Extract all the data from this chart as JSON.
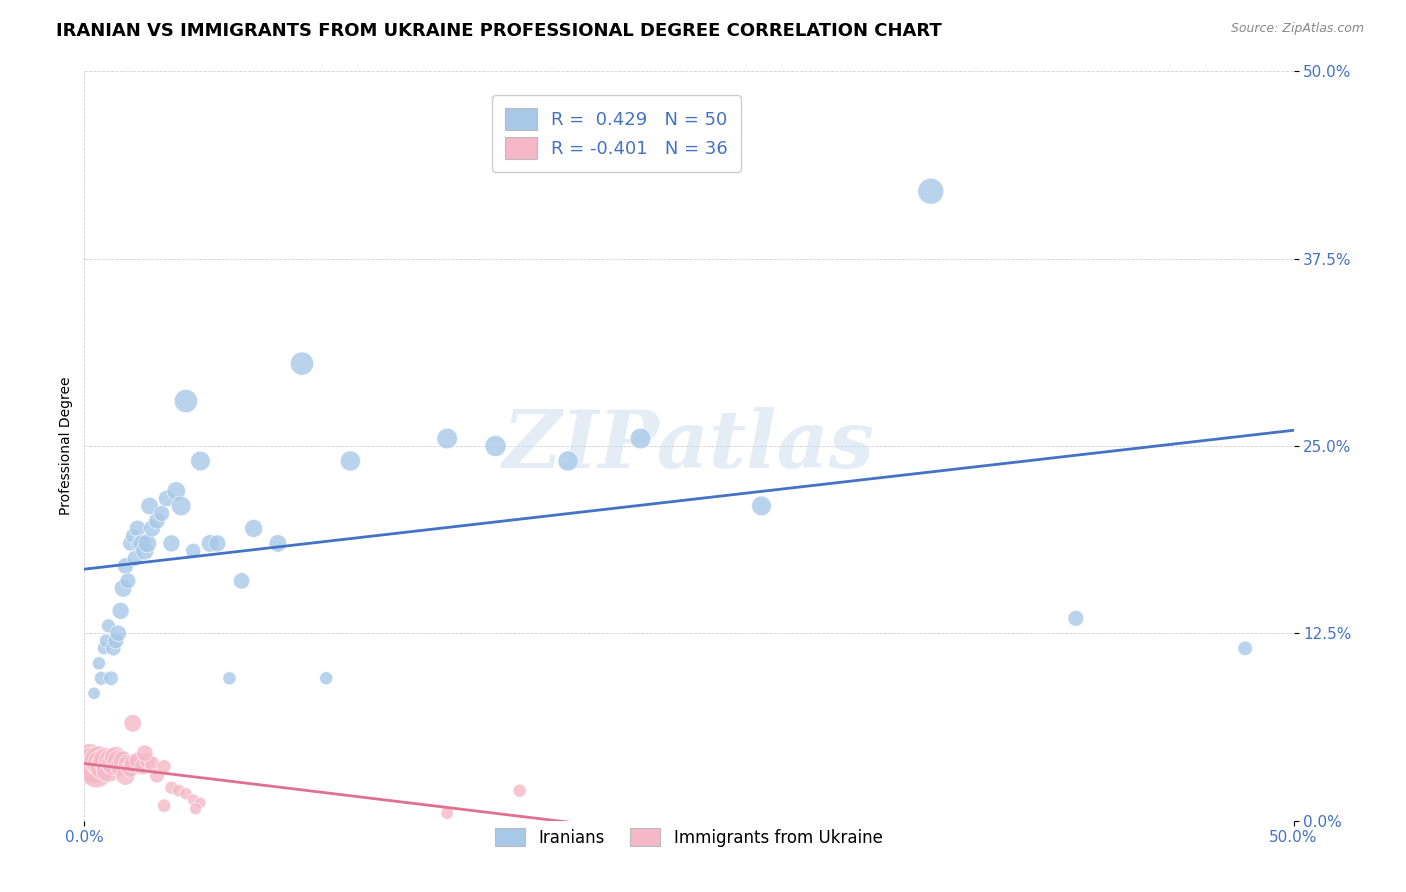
{
  "title": "IRANIAN VS IMMIGRANTS FROM UKRAINE PROFESSIONAL DEGREE CORRELATION CHART",
  "source": "Source: ZipAtlas.com",
  "ylabel": "Professional Degree",
  "xlabel": "",
  "xlim": [
    0.0,
    0.5
  ],
  "ylim": [
    0.0,
    0.5
  ],
  "ytick_labels": [
    "0.0%",
    "12.5%",
    "25.0%",
    "37.5%",
    "50.0%"
  ],
  "ytick_values": [
    0.0,
    0.125,
    0.25,
    0.375,
    0.5
  ],
  "xtick_values": [
    0.0,
    0.5
  ],
  "xtick_labels": [
    "0.0%",
    "50.0%"
  ],
  "background_color": "#ffffff",
  "watermark_text": "ZIPatlas",
  "iranians_color": "#a8c8e8",
  "ukraine_color": "#f4b8c8",
  "trend_iranian_color": "#4472c4",
  "trend_ukraine_color": "#e07090",
  "iranians_R": 0.429,
  "iranians_N": 50,
  "ukraine_R": -0.401,
  "ukraine_N": 36,
  "iranians_x": [
    0.004,
    0.006,
    0.007,
    0.008,
    0.009,
    0.01,
    0.011,
    0.012,
    0.013,
    0.014,
    0.015,
    0.016,
    0.017,
    0.018,
    0.019,
    0.02,
    0.021,
    0.022,
    0.023,
    0.024,
    0.025,
    0.026,
    0.027,
    0.028,
    0.03,
    0.032,
    0.034,
    0.036,
    0.038,
    0.04,
    0.042,
    0.045,
    0.048,
    0.052,
    0.055,
    0.06,
    0.065,
    0.07,
    0.08,
    0.09,
    0.1,
    0.11,
    0.15,
    0.17,
    0.2,
    0.23,
    0.28,
    0.35,
    0.41,
    0.48
  ],
  "iranians_y": [
    0.085,
    0.105,
    0.095,
    0.115,
    0.12,
    0.13,
    0.095,
    0.115,
    0.12,
    0.125,
    0.14,
    0.155,
    0.17,
    0.16,
    0.185,
    0.19,
    0.175,
    0.195,
    0.185,
    0.185,
    0.18,
    0.185,
    0.21,
    0.195,
    0.2,
    0.205,
    0.215,
    0.185,
    0.22,
    0.21,
    0.28,
    0.18,
    0.24,
    0.185,
    0.185,
    0.095,
    0.16,
    0.195,
    0.185,
    0.305,
    0.095,
    0.24,
    0.255,
    0.25,
    0.24,
    0.255,
    0.21,
    0.42,
    0.135,
    0.115
  ],
  "iranians_sizes": [
    80,
    90,
    100,
    85,
    95,
    100,
    110,
    120,
    130,
    140,
    150,
    160,
    140,
    130,
    120,
    110,
    130,
    140,
    150,
    160,
    170,
    180,
    160,
    150,
    140,
    130,
    140,
    150,
    180,
    200,
    280,
    120,
    200,
    160,
    150,
    90,
    140,
    170,
    160,
    280,
    90,
    210,
    220,
    230,
    210,
    220,
    200,
    350,
    130,
    110
  ],
  "ukraine_x": [
    0.002,
    0.003,
    0.004,
    0.005,
    0.006,
    0.007,
    0.008,
    0.009,
    0.01,
    0.011,
    0.012,
    0.013,
    0.014,
    0.015,
    0.016,
    0.017,
    0.018,
    0.019,
    0.02,
    0.022,
    0.024,
    0.026,
    0.028,
    0.03,
    0.033,
    0.036,
    0.039,
    0.042,
    0.045,
    0.048,
    0.02,
    0.025,
    0.033,
    0.18,
    0.046,
    0.15
  ],
  "ukraine_y": [
    0.04,
    0.038,
    0.035,
    0.032,
    0.04,
    0.038,
    0.036,
    0.04,
    0.034,
    0.04,
    0.038,
    0.042,
    0.04,
    0.036,
    0.04,
    0.03,
    0.038,
    0.035,
    0.038,
    0.04,
    0.036,
    0.04,
    0.038,
    0.03,
    0.036,
    0.022,
    0.02,
    0.018,
    0.014,
    0.012,
    0.065,
    0.045,
    0.01,
    0.02,
    0.008,
    0.005
  ],
  "ukraine_sizes": [
    600,
    550,
    500,
    480,
    450,
    400,
    380,
    350,
    320,
    300,
    280,
    260,
    240,
    220,
    200,
    190,
    180,
    170,
    160,
    150,
    140,
    130,
    120,
    110,
    100,
    90,
    80,
    75,
    70,
    65,
    160,
    140,
    90,
    90,
    75,
    80
  ],
  "legend_iranians_label": "Iranians",
  "legend_ukraine_label": "Immigrants from Ukraine",
  "title_fontsize": 13,
  "axis_label_fontsize": 10,
  "tick_fontsize": 11,
  "tick_color": "#4472c4"
}
